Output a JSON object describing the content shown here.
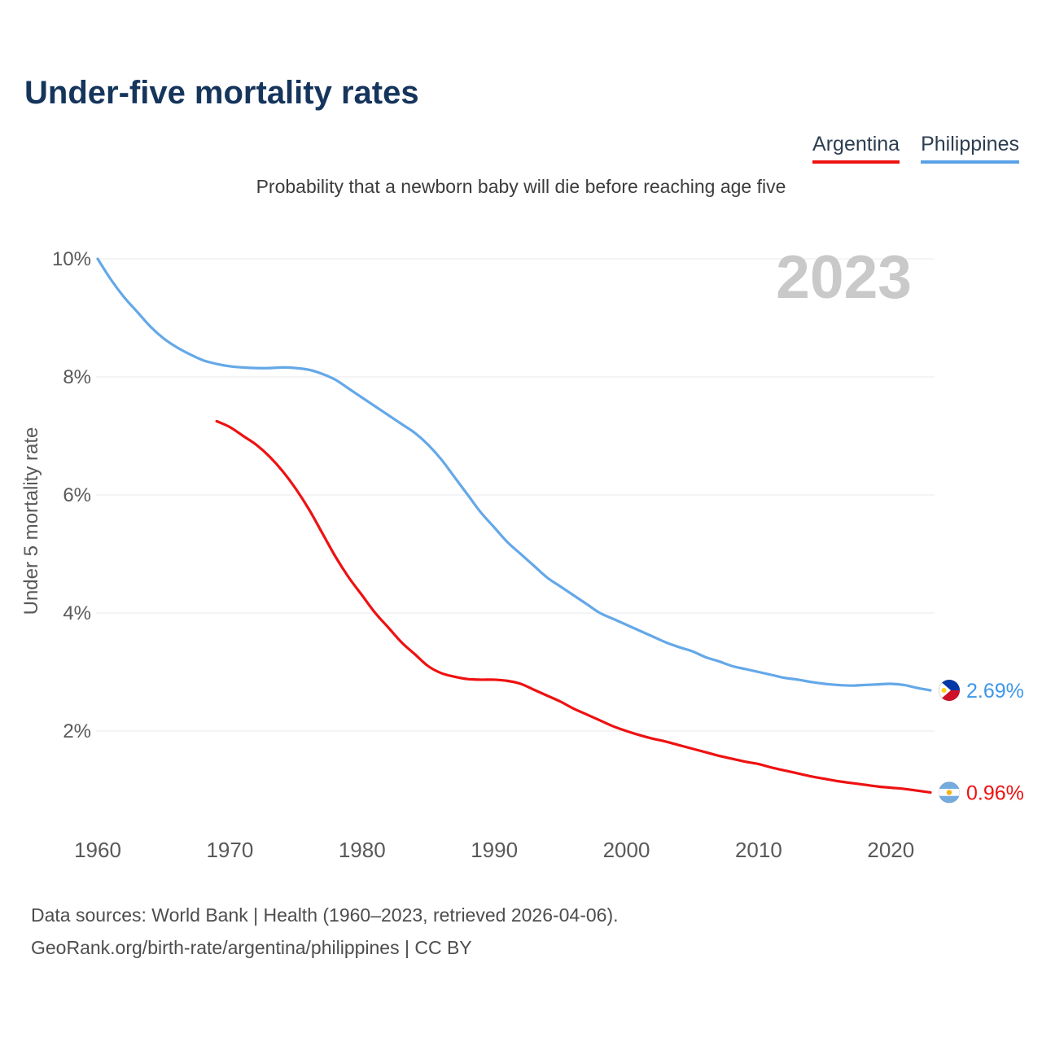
{
  "page": {
    "title": "Under-five mortality rates",
    "subtitle": "Probability that a newborn baby will die before reaching age five",
    "footer_line1": "Data sources: World Bank | Health (1960–2023, retrieved 2026-04-06).",
    "footer_line2": "GeoRank.org/birth-rate/argentina/philippines | CC BY"
  },
  "legend": [
    {
      "label": "Argentina",
      "color": "#ee1111"
    },
    {
      "label": "Philippines",
      "color": "#5aa2e6"
    }
  ],
  "chart_data": {
    "type": "line",
    "title": "Under-five mortality rates",
    "subtitle": "Probability that a newborn baby will die before reaching age five",
    "ylabel": "Under 5 mortality rate",
    "xlabel": "",
    "year_label": "2023",
    "grid": "horizontal",
    "legend_position": "top-right",
    "xlim": [
      1960,
      2023
    ],
    "ylim": [
      0,
      10.5
    ],
    "x_ticks": [
      1960,
      1970,
      1980,
      1990,
      2000,
      2010,
      2020
    ],
    "y_ticks": [
      {
        "value": 2,
        "label": "2%"
      },
      {
        "value": 4,
        "label": "4%"
      },
      {
        "value": 6,
        "label": "6%"
      },
      {
        "value": 8,
        "label": "8%"
      },
      {
        "value": 10,
        "label": "10%"
      }
    ],
    "series": [
      {
        "name": "Philippines",
        "color": "#64a8e8",
        "label_color": "#3e97e8",
        "flag": "philippines",
        "end_label": "2.69%",
        "points": [
          [
            1960,
            10.0
          ],
          [
            1961,
            9.65
          ],
          [
            1962,
            9.35
          ],
          [
            1963,
            9.1
          ],
          [
            1964,
            8.85
          ],
          [
            1965,
            8.65
          ],
          [
            1966,
            8.5
          ],
          [
            1967,
            8.38
          ],
          [
            1968,
            8.28
          ],
          [
            1969,
            8.22
          ],
          [
            1970,
            8.18
          ],
          [
            1971,
            8.16
          ],
          [
            1972,
            8.15
          ],
          [
            1973,
            8.15
          ],
          [
            1974,
            8.16
          ],
          [
            1975,
            8.15
          ],
          [
            1976,
            8.12
          ],
          [
            1977,
            8.05
          ],
          [
            1978,
            7.95
          ],
          [
            1979,
            7.8
          ],
          [
            1980,
            7.65
          ],
          [
            1981,
            7.5
          ],
          [
            1982,
            7.35
          ],
          [
            1983,
            7.2
          ],
          [
            1984,
            7.05
          ],
          [
            1985,
            6.85
          ],
          [
            1986,
            6.6
          ],
          [
            1987,
            6.3
          ],
          [
            1988,
            6.0
          ],
          [
            1989,
            5.7
          ],
          [
            1990,
            5.45
          ],
          [
            1991,
            5.2
          ],
          [
            1992,
            5.0
          ],
          [
            1993,
            4.8
          ],
          [
            1994,
            4.6
          ],
          [
            1995,
            4.45
          ],
          [
            1996,
            4.3
          ],
          [
            1997,
            4.15
          ],
          [
            1998,
            4.0
          ],
          [
            1999,
            3.9
          ],
          [
            2000,
            3.8
          ],
          [
            2001,
            3.7
          ],
          [
            2002,
            3.6
          ],
          [
            2003,
            3.5
          ],
          [
            2004,
            3.42
          ],
          [
            2005,
            3.35
          ],
          [
            2006,
            3.25
          ],
          [
            2007,
            3.18
          ],
          [
            2008,
            3.1
          ],
          [
            2009,
            3.05
          ],
          [
            2010,
            3.0
          ],
          [
            2011,
            2.95
          ],
          [
            2012,
            2.9
          ],
          [
            2013,
            2.87
          ],
          [
            2014,
            2.83
          ],
          [
            2015,
            2.8
          ],
          [
            2016,
            2.78
          ],
          [
            2017,
            2.77
          ],
          [
            2018,
            2.78
          ],
          [
            2019,
            2.79
          ],
          [
            2020,
            2.8
          ],
          [
            2021,
            2.78
          ],
          [
            2022,
            2.73
          ],
          [
            2023,
            2.69
          ]
        ]
      },
      {
        "name": "Argentina",
        "color": "#ee1111",
        "label_color": "#ee1111",
        "flag": "argentina",
        "end_label": "0.96%",
        "points": [
          [
            1969,
            7.25
          ],
          [
            1970,
            7.15
          ],
          [
            1971,
            7.0
          ],
          [
            1972,
            6.85
          ],
          [
            1973,
            6.65
          ],
          [
            1974,
            6.4
          ],
          [
            1975,
            6.1
          ],
          [
            1976,
            5.75
          ],
          [
            1977,
            5.35
          ],
          [
            1978,
            4.95
          ],
          [
            1979,
            4.6
          ],
          [
            1980,
            4.3
          ],
          [
            1981,
            4.0
          ],
          [
            1982,
            3.75
          ],
          [
            1983,
            3.5
          ],
          [
            1984,
            3.3
          ],
          [
            1985,
            3.1
          ],
          [
            1986,
            2.98
          ],
          [
            1987,
            2.92
          ],
          [
            1988,
            2.88
          ],
          [
            1989,
            2.87
          ],
          [
            1990,
            2.87
          ],
          [
            1991,
            2.85
          ],
          [
            1992,
            2.8
          ],
          [
            1993,
            2.7
          ],
          [
            1994,
            2.6
          ],
          [
            1995,
            2.5
          ],
          [
            1996,
            2.38
          ],
          [
            1997,
            2.28
          ],
          [
            1998,
            2.18
          ],
          [
            1999,
            2.08
          ],
          [
            2000,
            2.0
          ],
          [
            2001,
            1.93
          ],
          [
            2002,
            1.87
          ],
          [
            2003,
            1.82
          ],
          [
            2004,
            1.76
          ],
          [
            2005,
            1.7
          ],
          [
            2006,
            1.64
          ],
          [
            2007,
            1.58
          ],
          [
            2008,
            1.53
          ],
          [
            2009,
            1.48
          ],
          [
            2010,
            1.44
          ],
          [
            2011,
            1.38
          ],
          [
            2012,
            1.33
          ],
          [
            2013,
            1.28
          ],
          [
            2014,
            1.23
          ],
          [
            2015,
            1.19
          ],
          [
            2016,
            1.15
          ],
          [
            2017,
            1.12
          ],
          [
            2018,
            1.09
          ],
          [
            2019,
            1.06
          ],
          [
            2020,
            1.04
          ],
          [
            2021,
            1.02
          ],
          [
            2022,
            0.99
          ],
          [
            2023,
            0.96
          ]
        ]
      }
    ]
  }
}
